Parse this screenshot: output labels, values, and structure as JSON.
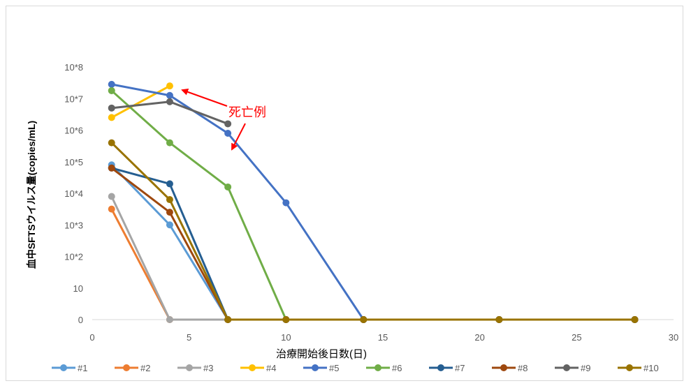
{
  "chart_data": {
    "type": "line",
    "title": "",
    "xlabel": "治療開始後日数(日)",
    "ylabel": "血中SFTSウイルス量(copies/mL)",
    "xlim": [
      0,
      30
    ],
    "x_ticks": [
      0,
      5,
      10,
      15,
      20,
      25,
      30
    ],
    "y_ticks": [
      "0",
      "10",
      "10*2",
      "10*3",
      "10*4",
      "10*5",
      "10*6",
      "10*7",
      "10*8"
    ],
    "y_scale": "categorical log levels (0, 10, 10*2 ... 10*8), values given as log10 position",
    "grid": false,
    "legend_position": "bottom",
    "series": [
      {
        "name": "#1",
        "color": "#5B9BD5",
        "points": [
          [
            1,
            4.9
          ],
          [
            4,
            3.0
          ],
          [
            7,
            0
          ],
          [
            10,
            0
          ],
          [
            14,
            0
          ],
          [
            21,
            0
          ],
          [
            28,
            0
          ]
        ]
      },
      {
        "name": "#2",
        "color": "#ED7D31",
        "points": [
          [
            1,
            3.5
          ],
          [
            4,
            0
          ],
          [
            7,
            0
          ],
          [
            10,
            0
          ],
          [
            14,
            0
          ],
          [
            21,
            0
          ],
          [
            28,
            0
          ]
        ]
      },
      {
        "name": "#3",
        "color": "#A5A5A5",
        "points": [
          [
            1,
            3.9
          ],
          [
            4,
            0
          ],
          [
            7,
            0
          ],
          [
            10,
            0
          ],
          [
            14,
            0
          ],
          [
            21,
            0
          ],
          [
            28,
            0
          ]
        ]
      },
      {
        "name": "#4",
        "color": "#FFC000",
        "points": [
          [
            1,
            6.4
          ],
          [
            4,
            7.4
          ]
        ]
      },
      {
        "name": "#5",
        "color": "#4472C4",
        "points": [
          [
            1,
            7.45
          ],
          [
            4,
            7.1
          ],
          [
            7,
            5.9
          ],
          [
            10,
            3.7
          ],
          [
            14,
            0
          ],
          [
            21,
            0
          ],
          [
            28,
            0
          ]
        ]
      },
      {
        "name": "#6",
        "color": "#70AD47",
        "points": [
          [
            1,
            7.25
          ],
          [
            4,
            5.6
          ],
          [
            7,
            4.2
          ],
          [
            10,
            0
          ],
          [
            14,
            0
          ],
          [
            21,
            0
          ],
          [
            28,
            0
          ]
        ]
      },
      {
        "name": "#7",
        "color": "#255E91",
        "points": [
          [
            1,
            4.8
          ],
          [
            4,
            4.3
          ],
          [
            7,
            0
          ],
          [
            10,
            0
          ],
          [
            14,
            0
          ],
          [
            21,
            0
          ],
          [
            28,
            0
          ]
        ]
      },
      {
        "name": "#8",
        "color": "#9E480E",
        "points": [
          [
            1,
            4.8
          ],
          [
            4,
            3.4
          ],
          [
            7,
            0
          ],
          [
            10,
            0
          ],
          [
            14,
            0
          ],
          [
            21,
            0
          ],
          [
            28,
            0
          ]
        ]
      },
      {
        "name": "#9",
        "color": "#636363",
        "points": [
          [
            1,
            6.7
          ],
          [
            4,
            6.9
          ],
          [
            7,
            6.2
          ]
        ]
      },
      {
        "name": "#10",
        "color": "#997300",
        "points": [
          [
            1,
            5.6
          ],
          [
            4,
            3.8
          ],
          [
            7,
            0
          ],
          [
            10,
            0
          ],
          [
            14,
            0
          ],
          [
            21,
            0
          ],
          [
            28,
            0
          ]
        ]
      }
    ],
    "annotations": [
      {
        "text": "死亡例",
        "arrows_to": [
          "#4 at day 4",
          "#9 at day 7"
        ]
      }
    ]
  }
}
